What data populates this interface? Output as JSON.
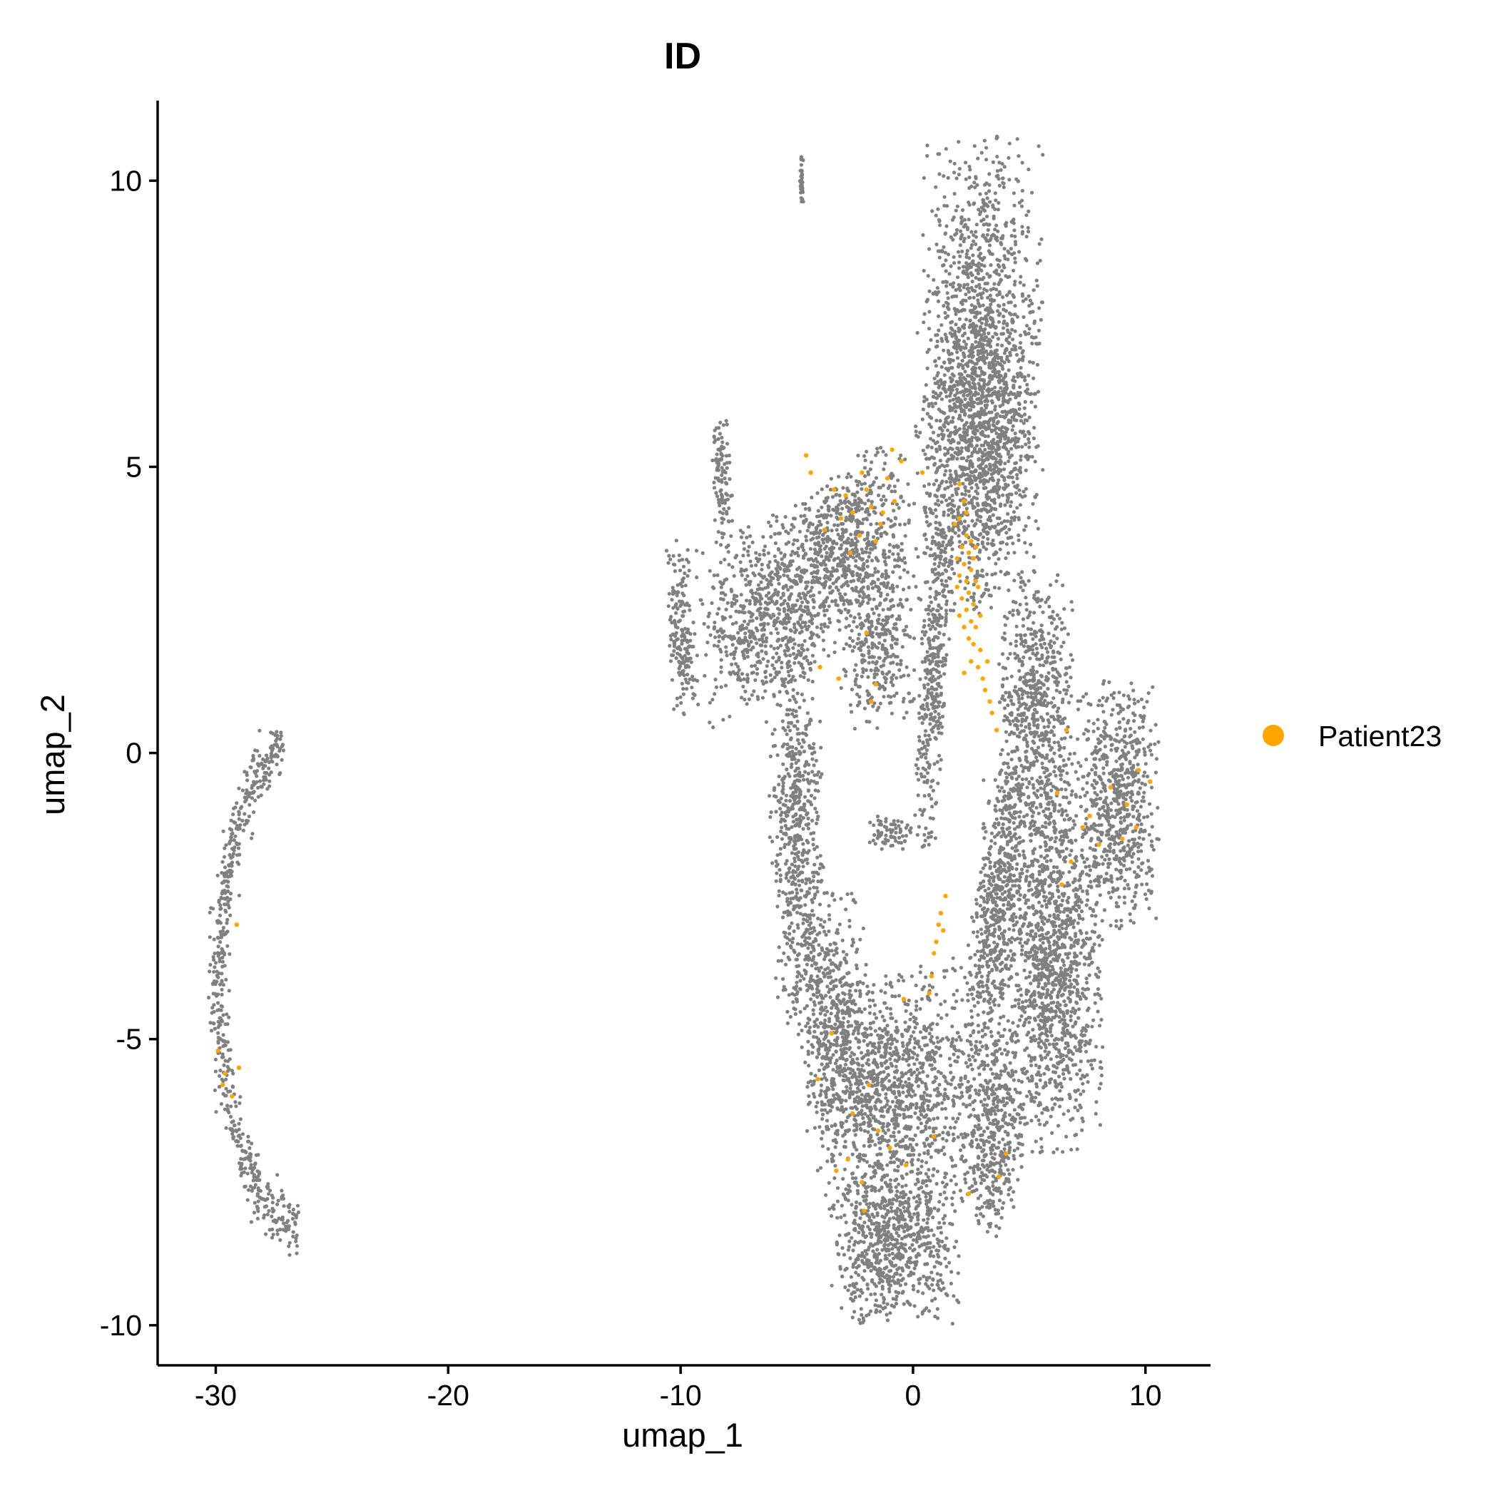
{
  "chart_data": {
    "type": "scatter",
    "title": "ID",
    "xlabel": "umap_1",
    "ylabel": "umap_2",
    "xlim": [
      -32.5,
      12.8
    ],
    "ylim": [
      -10.7,
      11.4
    ],
    "xticks": [
      -30,
      -20,
      -10,
      0,
      10
    ],
    "xtick_labels": [
      "-30",
      "-20",
      "-10",
      "0",
      "10"
    ],
    "yticks": [
      -10,
      -5,
      0,
      5,
      10
    ],
    "ytick_labels": [
      "-10",
      "-5",
      "0",
      "5",
      "10"
    ],
    "grid": false,
    "legend_position": "right",
    "background_color": "#808080",
    "series": [
      {
        "name": "Patient23",
        "color": "#FFA500",
        "points": [
          [
            2.0,
            4.7
          ],
          [
            2.2,
            4.4
          ],
          [
            2.0,
            4.1
          ],
          [
            2.3,
            3.8
          ],
          [
            2.1,
            3.6
          ],
          [
            2.4,
            3.5
          ],
          [
            2.6,
            3.4
          ],
          [
            2.2,
            3.3
          ],
          [
            2.5,
            3.2
          ],
          [
            2.3,
            3.0
          ],
          [
            2.0,
            3.1
          ],
          [
            2.7,
            3.0
          ],
          [
            2.4,
            2.8
          ],
          [
            2.1,
            2.7
          ],
          [
            2.6,
            2.6
          ],
          [
            2.3,
            2.5
          ],
          [
            2.5,
            2.3
          ],
          [
            2.2,
            2.2
          ],
          [
            2.7,
            2.2
          ],
          [
            2.4,
            2.0
          ],
          [
            2.6,
            1.9
          ],
          [
            2.9,
            1.8
          ],
          [
            2.5,
            1.6
          ],
          [
            2.8,
            1.5
          ],
          [
            3.0,
            1.3
          ],
          [
            3.1,
            1.1
          ],
          [
            3.3,
            0.9
          ],
          [
            3.4,
            0.7
          ],
          [
            3.6,
            0.4
          ],
          [
            1.8,
            4.0
          ],
          [
            1.9,
            3.4
          ],
          [
            2.8,
            2.9
          ],
          [
            2.0,
            2.4
          ],
          [
            2.9,
            2.4
          ],
          [
            2.3,
            4.2
          ],
          [
            2.5,
            3.7
          ],
          [
            2.7,
            3.6
          ],
          [
            1.9,
            2.9
          ],
          [
            3.2,
            1.6
          ],
          [
            2.2,
            1.4
          ],
          [
            -4.6,
            5.2
          ],
          [
            -4.4,
            4.9
          ],
          [
            -3.4,
            4.6
          ],
          [
            -2.9,
            4.5
          ],
          [
            -2.6,
            4.2
          ],
          [
            -2.0,
            4.6
          ],
          [
            -1.8,
            4.3
          ],
          [
            -1.4,
            4.0
          ],
          [
            -3.1,
            4.1
          ],
          [
            -2.3,
            3.8
          ],
          [
            -1.1,
            4.8
          ],
          [
            -0.8,
            4.4
          ],
          [
            -0.5,
            5.1
          ],
          [
            -1.6,
            3.7
          ],
          [
            -3.8,
            3.9
          ],
          [
            -2.7,
            3.5
          ],
          [
            -1.3,
            4.2
          ],
          [
            -0.9,
            5.3
          ],
          [
            0.4,
            4.9
          ],
          [
            -2.2,
            4.9
          ],
          [
            -2.0,
            2.1
          ],
          [
            -3.2,
            1.3
          ],
          [
            -4.0,
            1.5
          ],
          [
            -1.6,
            1.2
          ],
          [
            -1.8,
            0.9
          ],
          [
            6.2,
            -0.7
          ],
          [
            7.6,
            -1.1
          ],
          [
            8.5,
            -0.6
          ],
          [
            9.2,
            -0.9
          ],
          [
            9.7,
            -0.3
          ],
          [
            8.0,
            -1.6
          ],
          [
            6.8,
            -1.9
          ],
          [
            6.4,
            -2.3
          ],
          [
            7.3,
            -1.3
          ],
          [
            9.0,
            -1.5
          ],
          [
            10.2,
            -0.5
          ],
          [
            6.6,
            0.4
          ],
          [
            9.6,
            -1.3
          ],
          [
            1.4,
            -2.5
          ],
          [
            1.1,
            -3.0
          ],
          [
            1.3,
            -3.1
          ],
          [
            1.0,
            -3.3
          ],
          [
            0.9,
            -3.5
          ],
          [
            0.8,
            -3.9
          ],
          [
            1.2,
            -2.8
          ],
          [
            0.7,
            -4.2
          ],
          [
            -0.4,
            -4.3
          ],
          [
            -3.5,
            -4.9
          ],
          [
            -4.1,
            -5.7
          ],
          [
            -1.9,
            -5.8
          ],
          [
            -2.6,
            -6.3
          ],
          [
            -1.5,
            -6.6
          ],
          [
            -2.8,
            -7.1
          ],
          [
            -3.3,
            -7.3
          ],
          [
            -1.0,
            -6.9
          ],
          [
            0.9,
            -6.7
          ],
          [
            4.0,
            -7.0
          ],
          [
            3.7,
            -7.4
          ],
          [
            2.4,
            -7.7
          ],
          [
            -2.2,
            -7.5
          ],
          [
            -0.3,
            -7.2
          ],
          [
            -2.1,
            -8.0
          ],
          [
            -29.9,
            -5.2
          ],
          [
            -29.6,
            -5.6
          ],
          [
            -29.7,
            -5.8
          ],
          [
            -29.0,
            -5.5
          ],
          [
            -29.3,
            -6.0
          ],
          [
            -29.1,
            -3.0
          ]
        ]
      }
    ]
  }
}
